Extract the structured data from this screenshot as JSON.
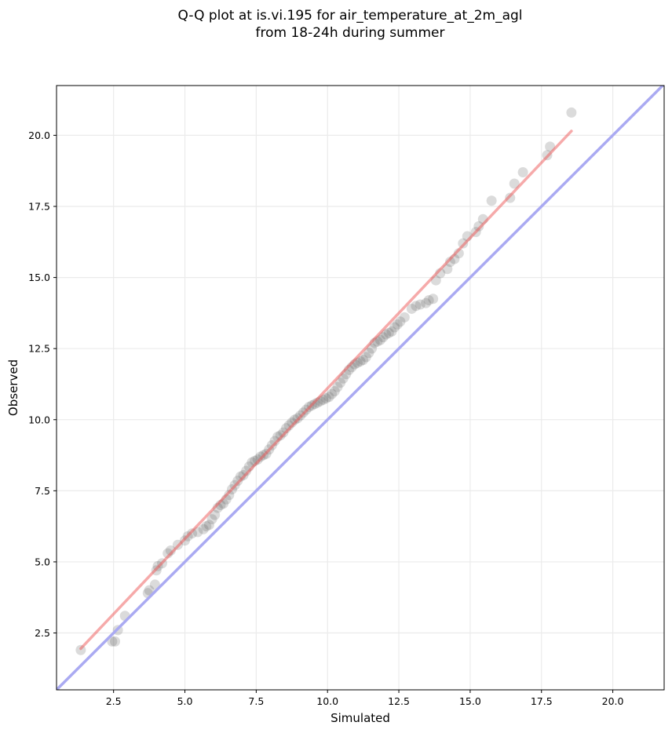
{
  "chart_data": {
    "type": "scatter",
    "title": "Q-Q plot at is.vi.195 for air_temperature_at_2m_agl",
    "subtitle": "from 18-24h during summer",
    "xlabel": "Simulated",
    "ylabel": "Observed",
    "xlim": [
      0.5,
      21.8
    ],
    "ylim": [
      0.5,
      21.75
    ],
    "xticks": [
      2.5,
      5.0,
      7.5,
      10.0,
      12.5,
      15.0,
      17.5,
      20.0
    ],
    "yticks": [
      2.5,
      5.0,
      7.5,
      10.0,
      12.5,
      15.0,
      17.5,
      20.0
    ],
    "grid": true,
    "colors": {
      "points": "#4d4d4d",
      "fit_line": "#f4a3a3",
      "identity_line": "#aaaaf2"
    },
    "fit_line": {
      "x": [
        1.35,
        18.55
      ],
      "y": [
        1.95,
        20.15
      ]
    },
    "identity_line": {
      "x": [
        0.5,
        21.8
      ],
      "y": [
        0.5,
        21.8
      ]
    },
    "series": [
      {
        "x": [
          1.35,
          2.45,
          2.55,
          2.65,
          2.9,
          3.7,
          3.75,
          3.95,
          4.0,
          4.05,
          4.2,
          4.4,
          4.5,
          4.75,
          5.0,
          5.1,
          5.25,
          5.45,
          5.65,
          5.75,
          5.85,
          5.95,
          6.05,
          6.15,
          6.25,
          6.35,
          6.45,
          6.55,
          6.65,
          6.75,
          6.85,
          6.95,
          7.05,
          7.15,
          7.25,
          7.35,
          7.45,
          7.55,
          7.65,
          7.75,
          7.85,
          7.95,
          8.05,
          8.15,
          8.25,
          8.35,
          8.45,
          8.55,
          8.65,
          8.75,
          8.85,
          8.95,
          9.05,
          9.15,
          9.25,
          9.35,
          9.45,
          9.55,
          9.65,
          9.75,
          9.85,
          9.95,
          10.05,
          10.15,
          10.25,
          10.35,
          10.45,
          10.55,
          10.65,
          10.75,
          10.85,
          10.95,
          11.05,
          11.15,
          11.25,
          11.35,
          11.45,
          11.55,
          11.65,
          11.75,
          11.85,
          11.95,
          12.05,
          12.15,
          12.25,
          12.35,
          12.45,
          12.55,
          12.7,
          12.95,
          13.1,
          13.25,
          13.45,
          13.55,
          13.7,
          13.8,
          13.95,
          14.2,
          14.3,
          14.45,
          14.6,
          14.75,
          14.9,
          15.2,
          15.3,
          15.45,
          15.75,
          16.4,
          16.55,
          16.85,
          17.7,
          17.8,
          18.55
        ],
        "y": [
          1.9,
          2.2,
          2.2,
          2.6,
          3.1,
          3.9,
          4.0,
          4.2,
          4.7,
          4.85,
          4.95,
          5.3,
          5.4,
          5.6,
          5.75,
          5.9,
          6.0,
          6.05,
          6.15,
          6.25,
          6.3,
          6.5,
          6.65,
          6.9,
          7.0,
          7.05,
          7.2,
          7.35,
          7.55,
          7.7,
          7.85,
          8.0,
          8.05,
          8.2,
          8.35,
          8.5,
          8.55,
          8.6,
          8.7,
          8.75,
          8.8,
          8.95,
          9.1,
          9.25,
          9.4,
          9.45,
          9.55,
          9.7,
          9.8,
          9.9,
          10.0,
          10.05,
          10.15,
          10.25,
          10.35,
          10.45,
          10.5,
          10.55,
          10.6,
          10.65,
          10.7,
          10.75,
          10.8,
          10.9,
          11.0,
          11.15,
          11.3,
          11.45,
          11.6,
          11.75,
          11.85,
          11.95,
          12.0,
          12.05,
          12.1,
          12.2,
          12.35,
          12.5,
          12.7,
          12.75,
          12.8,
          12.9,
          13.0,
          13.05,
          13.1,
          13.25,
          13.35,
          13.45,
          13.6,
          13.9,
          14.0,
          14.05,
          14.1,
          14.2,
          14.25,
          14.9,
          15.15,
          15.3,
          15.55,
          15.65,
          15.85,
          16.2,
          16.45,
          16.6,
          16.8,
          17.05,
          17.7,
          17.8,
          18.3,
          18.7,
          19.3,
          19.6,
          20.8
        ]
      }
    ]
  }
}
